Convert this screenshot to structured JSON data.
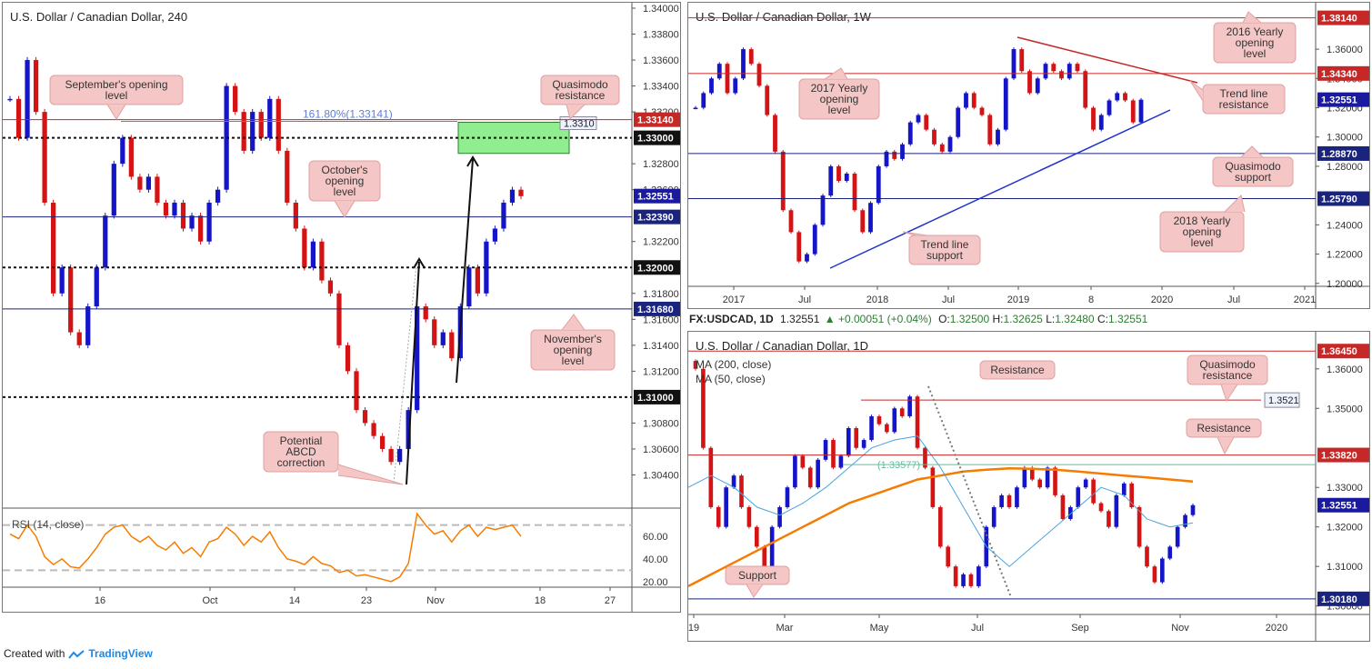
{
  "footer": {
    "created_with": "Created with",
    "brand": "TradingView"
  },
  "header3": {
    "symbol": "FX:USDCAD, 1D",
    "price": "1.32551",
    "change": "▲ +0.00051 (+0.04%)",
    "o_label": "O:",
    "o": "1.32500",
    "h_label": "H:",
    "h": "1.32625",
    "l_label": "L:",
    "l": "1.32480",
    "c_label": "C:",
    "c": "1.32551"
  },
  "colors": {
    "up": "#1414c8",
    "down": "#d41414",
    "level_red": "#c62828",
    "level_blue": "#1a237e",
    "note_bg": "#f5c6c6",
    "ma200": "#f57c00",
    "ma50": "#4aa3df",
    "rsi": "#f57c00",
    "zone": "#90ee90"
  },
  "chart_data": [
    {
      "type": "candlestick",
      "title": "U.S. Dollar / Canadian Dollar, 240",
      "x_ticks": [
        "16",
        "Oct",
        "14",
        "23",
        "Nov",
        "18",
        "27"
      ],
      "y_ticks": [
        "1.34000",
        "1.33800",
        "1.33600",
        "1.33400",
        "1.33200",
        "1.32800",
        "1.32600",
        "1.32200",
        "1.31800",
        "1.31600",
        "1.31400",
        "1.31200",
        "1.30800",
        "1.30600",
        "1.30400"
      ],
      "ylim": [
        1.302,
        1.34
      ],
      "levels": [
        {
          "value": 1.3314,
          "label": "1.33140",
          "style": "red"
        },
        {
          "value": 1.33,
          "label": "1.33000",
          "style": "dotted"
        },
        {
          "value": 1.32551,
          "label": "1.32551",
          "style": "price"
        },
        {
          "value": 1.3239,
          "label": "1.32390",
          "style": "blue"
        },
        {
          "value": 1.32,
          "label": "1.32000",
          "style": "dotted"
        },
        {
          "value": 1.3168,
          "label": "1.31680",
          "style": "blue"
        },
        {
          "value": 1.31,
          "label": "1.31000",
          "style": "dotted"
        }
      ],
      "fib_label": "161.80%(1.33141)",
      "fib_value": 1.33141,
      "zone": {
        "top": 1.3312,
        "bottom": 1.3288,
        "label": "1.3310"
      },
      "annotations": [
        "September's opening level",
        "October's opening level",
        "Quasimodo resistance",
        "November's opening level",
        "Potential ABCD correction"
      ],
      "closes": [
        1.333,
        1.33,
        1.336,
        1.332,
        1.325,
        1.318,
        1.32,
        1.315,
        1.314,
        1.317,
        1.32,
        1.324,
        1.328,
        1.33,
        1.327,
        1.326,
        1.327,
        1.325,
        1.324,
        1.325,
        1.323,
        1.324,
        1.322,
        1.325,
        1.326,
        1.334,
        1.332,
        1.329,
        1.332,
        1.33,
        1.333,
        1.329,
        1.325,
        1.323,
        1.32,
        1.322,
        1.319,
        1.318,
        1.314,
        1.312,
        1.309,
        1.308,
        1.307,
        1.306,
        1.305,
        1.306,
        1.309,
        1.317,
        1.316,
        1.314,
        1.315,
        1.313,
        1.317,
        1.32,
        1.318,
        1.322,
        1.323,
        1.325,
        1.326,
        1.3255
      ],
      "rsi": {
        "label": "RSI (14, close)",
        "y_ticks": [
          "60.00",
          "40.00",
          "20.00"
        ],
        "ylim": [
          15,
          85
        ],
        "bands": [
          70,
          30
        ],
        "values": [
          62,
          58,
          70,
          60,
          42,
          35,
          40,
          33,
          32,
          40,
          50,
          62,
          68,
          70,
          60,
          55,
          60,
          52,
          48,
          55,
          45,
          50,
          42,
          55,
          58,
          68,
          62,
          52,
          60,
          55,
          64,
          50,
          40,
          38,
          35,
          42,
          36,
          34,
          28,
          30,
          25,
          26,
          24,
          22,
          20,
          24,
          36,
          80,
          70,
          62,
          65,
          55,
          65,
          70,
          60,
          68,
          66,
          68,
          70,
          60
        ]
      }
    },
    {
      "type": "candlestick",
      "title": "U.S. Dollar / Canadian Dollar, 1W",
      "x_ticks": [
        "2017",
        "Jul",
        "2018",
        "Jul",
        "2019",
        "8",
        "2020",
        "Jul",
        "2021"
      ],
      "y_ticks": [
        "1.36000",
        "1.34000",
        "1.32000",
        "1.30000",
        "1.28000",
        "1.24000",
        "1.22000",
        "1.20000"
      ],
      "ylim": [
        1.198,
        1.388
      ],
      "levels": [
        {
          "value": 1.3814,
          "label": "1.38140",
          "style": "red"
        },
        {
          "value": 1.3434,
          "label": "1.34340",
          "style": "red"
        },
        {
          "value": 1.32551,
          "label": "1.32551",
          "style": "price"
        },
        {
          "value": 1.2887,
          "label": "1.28870",
          "style": "blue"
        },
        {
          "value": 1.2579,
          "label": "1.25790",
          "style": "blue"
        }
      ],
      "annotations": [
        "2016 Yearly opening level",
        "2017 Yearly opening level",
        "Trend line resistance",
        "Quasimodo support",
        "2018 Yearly opening level",
        "Trend line support"
      ],
      "closes": [
        1.32,
        1.33,
        1.34,
        1.35,
        1.33,
        1.34,
        1.36,
        1.35,
        1.335,
        1.315,
        1.29,
        1.25,
        1.235,
        1.215,
        1.22,
        1.24,
        1.26,
        1.28,
        1.27,
        1.275,
        1.25,
        1.235,
        1.255,
        1.28,
        1.29,
        1.285,
        1.295,
        1.31,
        1.315,
        1.305,
        1.295,
        1.29,
        1.3,
        1.32,
        1.33,
        1.32,
        1.315,
        1.295,
        1.305,
        1.34,
        1.36,
        1.345,
        1.33,
        1.34,
        1.35,
        1.345,
        1.34,
        1.35,
        1.345,
        1.32,
        1.305,
        1.315,
        1.325,
        1.33,
        1.325,
        1.31,
        1.3255
      ]
    },
    {
      "type": "candlestick",
      "title": "U.S. Dollar / Canadian Dollar, 1D",
      "x_ticks": [
        "19",
        "Mar",
        "May",
        "Jul",
        "Sep",
        "Nov",
        "2020"
      ],
      "y_ticks": [
        "1.36000",
        "1.35000",
        "1.33000",
        "1.32000",
        "1.31000",
        "1.30000"
      ],
      "ylim": [
        1.299,
        1.368
      ],
      "levels": [
        {
          "value": 1.3645,
          "label": "1.36450",
          "style": "red"
        },
        {
          "value": 1.3521,
          "label": "1.3521",
          "style": "thin-red"
        },
        {
          "value": 1.3382,
          "label": "1.33820",
          "style": "red"
        },
        {
          "value": 1.32551,
          "label": "1.32551",
          "style": "price"
        },
        {
          "value": 1.3018,
          "label": "1.30180",
          "style": "blue"
        }
      ],
      "fib_label": "(1.33577)",
      "fib_value": 1.33577,
      "legend": [
        "MA (200, close)",
        "MA (50, close)"
      ],
      "annotations": [
        "Resistance",
        "Quasimodo resistance",
        "Resistance",
        "Support"
      ],
      "closes": [
        1.36,
        1.34,
        1.325,
        1.32,
        1.33,
        1.333,
        1.325,
        1.32,
        1.315,
        1.31,
        1.32,
        1.325,
        1.33,
        1.338,
        1.335,
        1.33,
        1.337,
        1.342,
        1.335,
        1.338,
        1.345,
        1.34,
        1.342,
        1.348,
        1.346,
        1.344,
        1.35,
        1.348,
        1.353,
        1.34,
        1.335,
        1.325,
        1.315,
        1.31,
        1.305,
        1.308,
        1.305,
        1.31,
        1.32,
        1.325,
        1.328,
        1.325,
        1.33,
        1.335,
        1.332,
        1.33,
        1.335,
        1.328,
        1.322,
        1.325,
        1.33,
        1.332,
        1.326,
        1.324,
        1.32,
        1.328,
        1.331,
        1.325,
        1.315,
        1.31,
        1.306,
        1.312,
        1.315,
        1.32,
        1.323,
        1.3255
      ],
      "ma200": [
        1.305,
        1.308,
        1.311,
        1.314,
        1.317,
        1.32,
        1.323,
        1.326,
        1.328,
        1.33,
        1.332,
        1.333,
        1.334,
        1.3345,
        1.3348,
        1.3347,
        1.3345,
        1.334,
        1.3335,
        1.333,
        1.3325,
        1.332,
        1.3315
      ],
      "ma50": [
        1.33,
        1.333,
        1.33,
        1.325,
        1.323,
        1.326,
        1.33,
        1.335,
        1.34,
        1.342,
        1.343,
        1.335,
        1.325,
        1.315,
        1.31,
        1.315,
        1.32,
        1.325,
        1.33,
        1.328,
        1.322,
        1.32,
        1.321
      ]
    }
  ]
}
